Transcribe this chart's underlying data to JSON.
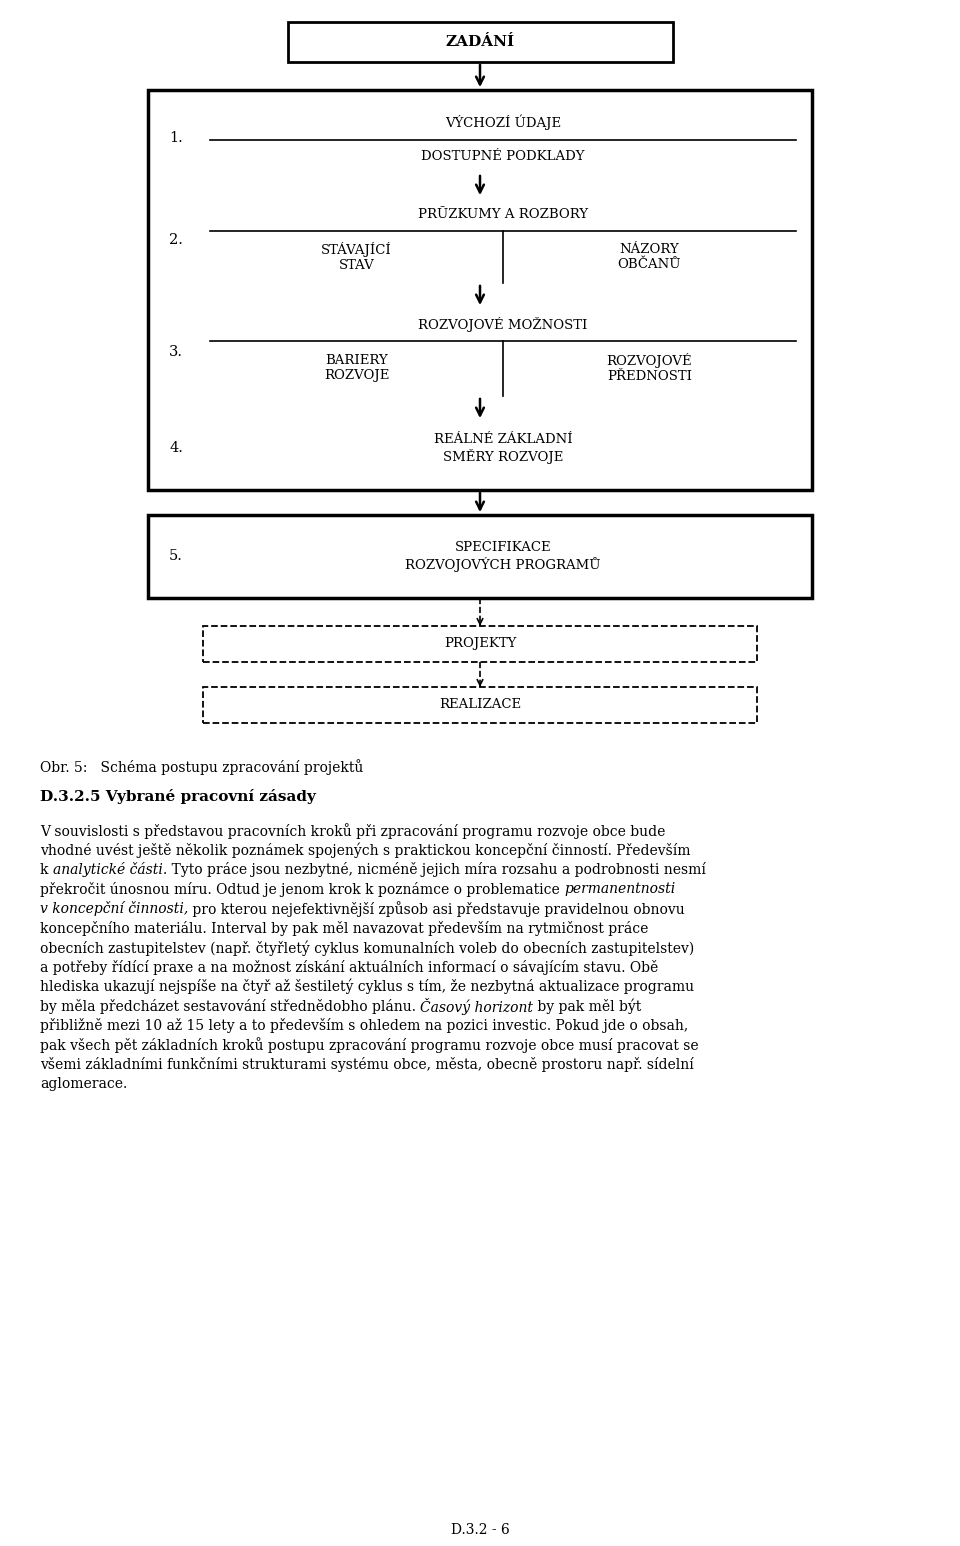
{
  "bg_color": "#ffffff",
  "fig_width": 9.6,
  "fig_height": 15.46,
  "caption": "Obr. 5:   Schéma postupu zpracování projektů",
  "section_title": "D.3.2.5 Vybrané pracovní zásady",
  "footer": "D.3.2 - 6",
  "diagram": {
    "zadani": "ZADÁNÍ",
    "step1_main": "VÝCHOZÍ ÚDAJE",
    "step1_sub": "DOSTUPNÉ PODKLADY",
    "step1_num": "1.",
    "step2_main": "PRŪZKUMY A ROZBORY",
    "step2_left": "STÁVAJÍCÍ\nSTAV",
    "step2_right": "NÁZORY\nOBČANŮ",
    "step2_num": "2.",
    "step3_main": "ROZVOJOVÉ MOŽNOSTI",
    "step3_left": "BARIERY\nROZVOJE",
    "step3_right": "ROZVOJOVÉ\nPŘEDNOSTI",
    "step3_num": "3.",
    "step4_main": "REÁLNÉ ZÁKLADNÍ\nSMĚRY ROZVOJE",
    "step4_num": "4.",
    "step5_main": "SPECIFIKACE\nROZVOJOVÝCH PROGRAMŮ",
    "step5_num": "5.",
    "projekty": "PROJEKTY",
    "realizace": "REALIZACE"
  }
}
